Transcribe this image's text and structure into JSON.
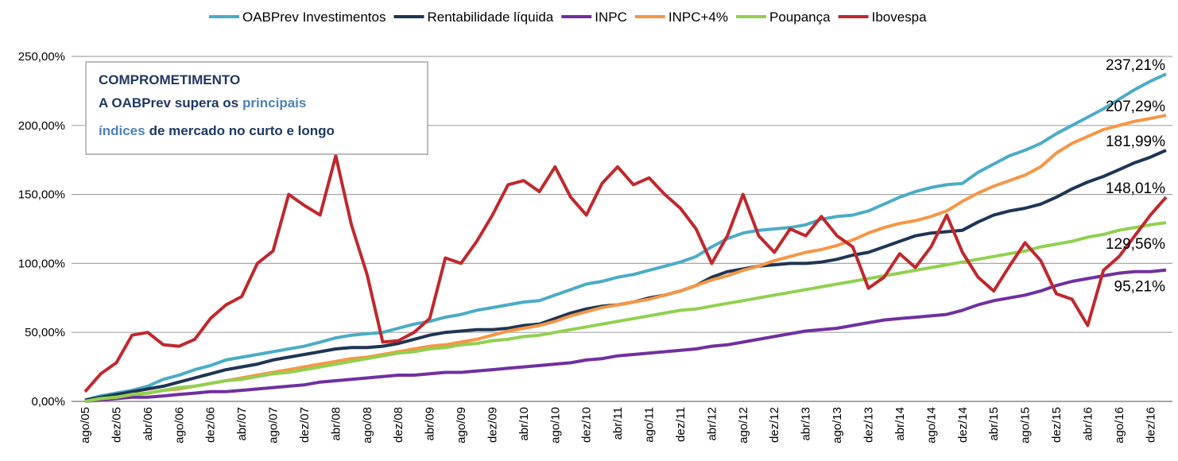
{
  "chart_data": {
    "type": "line",
    "annotation": {
      "title": "COMPROMETIMENTO",
      "lines": [
        [
          "A OABPrev supera os",
          "principais"
        ],
        [
          "índices",
          "de mercado no curto e longo"
        ]
      ]
    },
    "categories": [
      "ago/05",
      null,
      "dez/05",
      null,
      "abr/06",
      null,
      "ago/06",
      null,
      "dez/06",
      null,
      "abr/07",
      null,
      "ago/07",
      null,
      "dez/07",
      null,
      "abr/08",
      null,
      "ago/08",
      null,
      "dez/08",
      null,
      "abr/09",
      null,
      "ago/09",
      null,
      "dez/09",
      null,
      "abr/10",
      null,
      "ago/10",
      null,
      "dez/10",
      null,
      "abr/11",
      null,
      "ago/11",
      null,
      "dez/11",
      null,
      "abr/12",
      null,
      "ago/12",
      null,
      "dez/12",
      null,
      "abr/13",
      null,
      "ago/13",
      null,
      "dez/13",
      null,
      "abr/14",
      null,
      "ago/14",
      null,
      "dez/14",
      null,
      "abr/15",
      null,
      "ago/15",
      null,
      "dez/15",
      null,
      "abr/16",
      null,
      "ago/16",
      null,
      "dez/16",
      null
    ],
    "ylim": [
      0,
      250
    ],
    "yticks": [
      {
        "value": 0,
        "label": "0,00%"
      },
      {
        "value": 50,
        "label": "50,00%"
      },
      {
        "value": 100,
        "label": "100,00%"
      },
      {
        "value": 150,
        "label": "150,00%"
      },
      {
        "value": 200,
        "label": "200,00%"
      },
      {
        "value": 250,
        "label": "250,00%"
      }
    ],
    "grid": true,
    "legend": "top",
    "series": [
      {
        "name": "OABPrev Investimentos",
        "color": "#4bacc6",
        "values": [
          1,
          4,
          6,
          8,
          11,
          16,
          19,
          23,
          26,
          30,
          32,
          34,
          36,
          38,
          40,
          43,
          46,
          48,
          49,
          50,
          53,
          56,
          58,
          61,
          63,
          66,
          68,
          70,
          72,
          73,
          77,
          81,
          85,
          87,
          90,
          92,
          95,
          98,
          101,
          105,
          112,
          118,
          122,
          124,
          125,
          126,
          128,
          132,
          134,
          135,
          138,
          143,
          148,
          152,
          155,
          157,
          158,
          166,
          172,
          178,
          182,
          187,
          194,
          200,
          206,
          212,
          219,
          226,
          232,
          237.21
        ],
        "end_label": "237,21%"
      },
      {
        "name": "Rentabilidade líquida",
        "color": "#1f3553",
        "values": [
          1,
          3,
          5,
          7,
          9,
          11,
          14,
          17,
          20,
          23,
          25,
          27,
          30,
          32,
          34,
          36,
          38,
          39,
          39,
          40,
          42,
          45,
          48,
          50,
          51,
          52,
          52,
          53,
          55,
          56,
          60,
          64,
          67,
          69,
          70,
          72,
          75,
          77,
          80,
          84,
          90,
          94,
          96,
          98,
          99,
          100,
          100,
          101,
          103,
          106,
          108,
          112,
          116,
          120,
          122,
          123,
          124,
          130,
          135,
          138,
          140,
          143,
          148,
          154,
          159,
          163,
          168,
          173,
          177,
          181.99
        ],
        "end_label": "181,99%"
      },
      {
        "name": "INPC",
        "color": "#7030a0",
        "values": [
          0,
          1,
          2,
          3,
          3,
          4,
          5,
          6,
          7,
          7,
          8,
          9,
          10,
          11,
          12,
          14,
          15,
          16,
          17,
          18,
          19,
          19,
          20,
          21,
          21,
          22,
          23,
          24,
          25,
          26,
          27,
          28,
          30,
          31,
          33,
          34,
          35,
          36,
          37,
          38,
          40,
          41,
          43,
          45,
          47,
          49,
          51,
          52,
          53,
          55,
          57,
          59,
          60,
          61,
          62,
          63,
          66,
          70,
          73,
          75,
          77,
          80,
          84,
          87,
          89,
          91,
          93,
          94,
          94,
          95.21
        ],
        "end_label": "95,21%"
      },
      {
        "name": "INPC+4%",
        "color": "#f79646",
        "values": [
          0,
          2,
          3,
          5,
          6,
          8,
          9,
          11,
          13,
          15,
          17,
          19,
          21,
          23,
          25,
          27,
          29,
          31,
          32,
          34,
          36,
          38,
          40,
          41,
          43,
          45,
          48,
          51,
          53,
          55,
          58,
          62,
          65,
          68,
          70,
          72,
          74,
          77,
          80,
          84,
          88,
          91,
          95,
          98,
          102,
          105,
          108,
          110,
          113,
          117,
          122,
          126,
          129,
          131,
          134,
          138,
          145,
          151,
          156,
          160,
          164,
          170,
          180,
          187,
          192,
          197,
          200,
          203,
          205,
          207.29
        ],
        "end_label": "207,29%"
      },
      {
        "name": "Poupança",
        "color": "#92d050",
        "values": [
          0,
          2,
          3,
          5,
          6,
          8,
          10,
          11,
          13,
          15,
          16,
          18,
          20,
          21,
          23,
          25,
          27,
          29,
          31,
          33,
          35,
          36,
          38,
          39,
          41,
          42,
          44,
          45,
          47,
          48,
          50,
          52,
          54,
          56,
          58,
          60,
          62,
          64,
          66,
          67,
          69,
          71,
          73,
          75,
          77,
          79,
          81,
          83,
          85,
          87,
          89,
          91,
          93,
          95,
          97,
          99,
          101,
          103,
          105,
          107,
          109,
          112,
          114,
          116,
          119,
          121,
          124,
          126,
          128,
          129.56
        ],
        "end_label": "129,56%"
      },
      {
        "name": "Ibovespa",
        "color": "#c0282d",
        "values": [
          7,
          20,
          28,
          48,
          50,
          41,
          40,
          45,
          60,
          70,
          76,
          100,
          109,
          150,
          142,
          135,
          178,
          128,
          92,
          43,
          44,
          50,
          60,
          104,
          100,
          116,
          135,
          157,
          160,
          152,
          170,
          148,
          135,
          158,
          170,
          157,
          162,
          150,
          140,
          125,
          100,
          120,
          150,
          120,
          108,
          125,
          120,
          134,
          120,
          112,
          82,
          90,
          107,
          97,
          112,
          135,
          108,
          90,
          80,
          98,
          115,
          102,
          78,
          74,
          55,
          95,
          105,
          120,
          135,
          148.01
        ],
        "end_label": "148,01%"
      }
    ]
  }
}
